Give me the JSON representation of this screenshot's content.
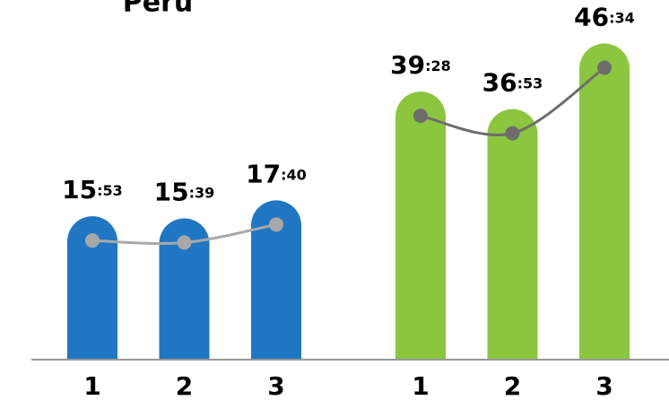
{
  "chart_data": [
    {
      "type": "bar",
      "title": "Peru",
      "categories": [
        "1",
        "2",
        "3"
      ],
      "values": [
        15.883,
        15.65,
        17.667
      ],
      "value_labels": [
        "15:53",
        "15:39",
        "17:40"
      ],
      "color": "#1f77c4",
      "line_color": "#a8a8a8",
      "ylim": [
        0,
        40
      ]
    },
    {
      "type": "bar",
      "categories": [
        "1",
        "2",
        "3"
      ],
      "values": [
        39.467,
        36.883,
        46.567
      ],
      "value_labels": [
        "39:28",
        "36:53",
        "46:34"
      ],
      "color": "#8cc63f",
      "line_color": "#6d6d6d",
      "ylim": [
        0,
        53
      ]
    }
  ]
}
